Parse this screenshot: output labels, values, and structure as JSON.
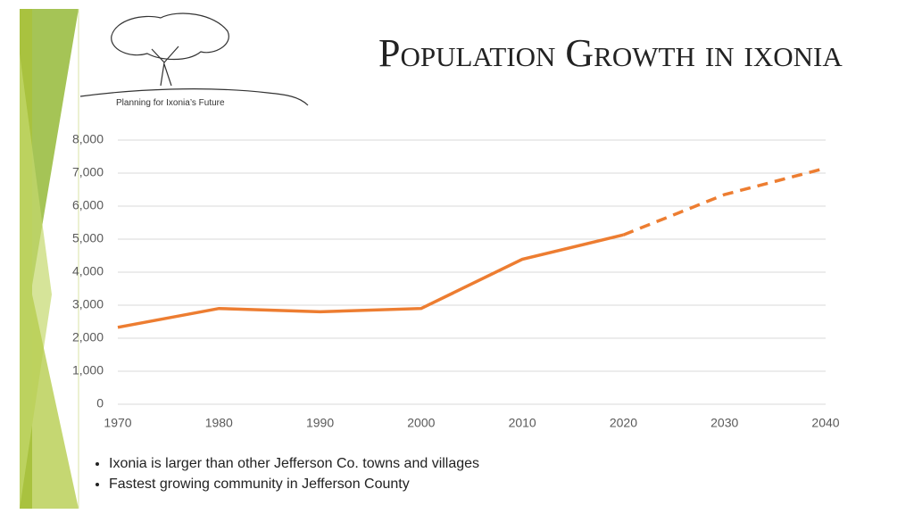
{
  "logo_caption": "Planning for Ixonia’s Future",
  "title": "Population Growth in ixonia",
  "bullets": [
    "Ixonia is larger than other Jefferson Co. towns and villages",
    "Fastest growing community in Jefferson County"
  ],
  "chart_data": {
    "type": "line",
    "x": [
      1970,
      1980,
      1990,
      2000,
      2010,
      2020,
      2030,
      2040
    ],
    "series": [
      {
        "color": "#ed7d31",
        "line_style": "solid",
        "values": [
          2330,
          2900,
          2800,
          2900,
          4390,
          5130,
          null,
          null
        ]
      },
      {
        "color": "#ed7d31",
        "line_style": "dashed",
        "values": [
          null,
          null,
          null,
          null,
          null,
          5130,
          6350,
          7150
        ]
      }
    ],
    "xlim": [
      1970,
      2040
    ],
    "xticks": [
      1970,
      1980,
      1990,
      2000,
      2010,
      2020,
      2030,
      2040
    ],
    "ylim": [
      0,
      8000
    ],
    "yticks": [
      0,
      {
        "value": 1000,
        "label": "1,000"
      },
      {
        "value": 2000,
        "label": "2,000"
      },
      {
        "value": 3000,
        "label": "3,000"
      },
      {
        "value": 4000,
        "label": "4,000"
      },
      {
        "value": 5000,
        "label": "5,000"
      },
      {
        "value": 6000,
        "label": "6,000"
      },
      {
        "value": 7000,
        "label": "7,000"
      },
      {
        "value": 8000,
        "label": "8,000"
      }
    ],
    "grid": true
  }
}
